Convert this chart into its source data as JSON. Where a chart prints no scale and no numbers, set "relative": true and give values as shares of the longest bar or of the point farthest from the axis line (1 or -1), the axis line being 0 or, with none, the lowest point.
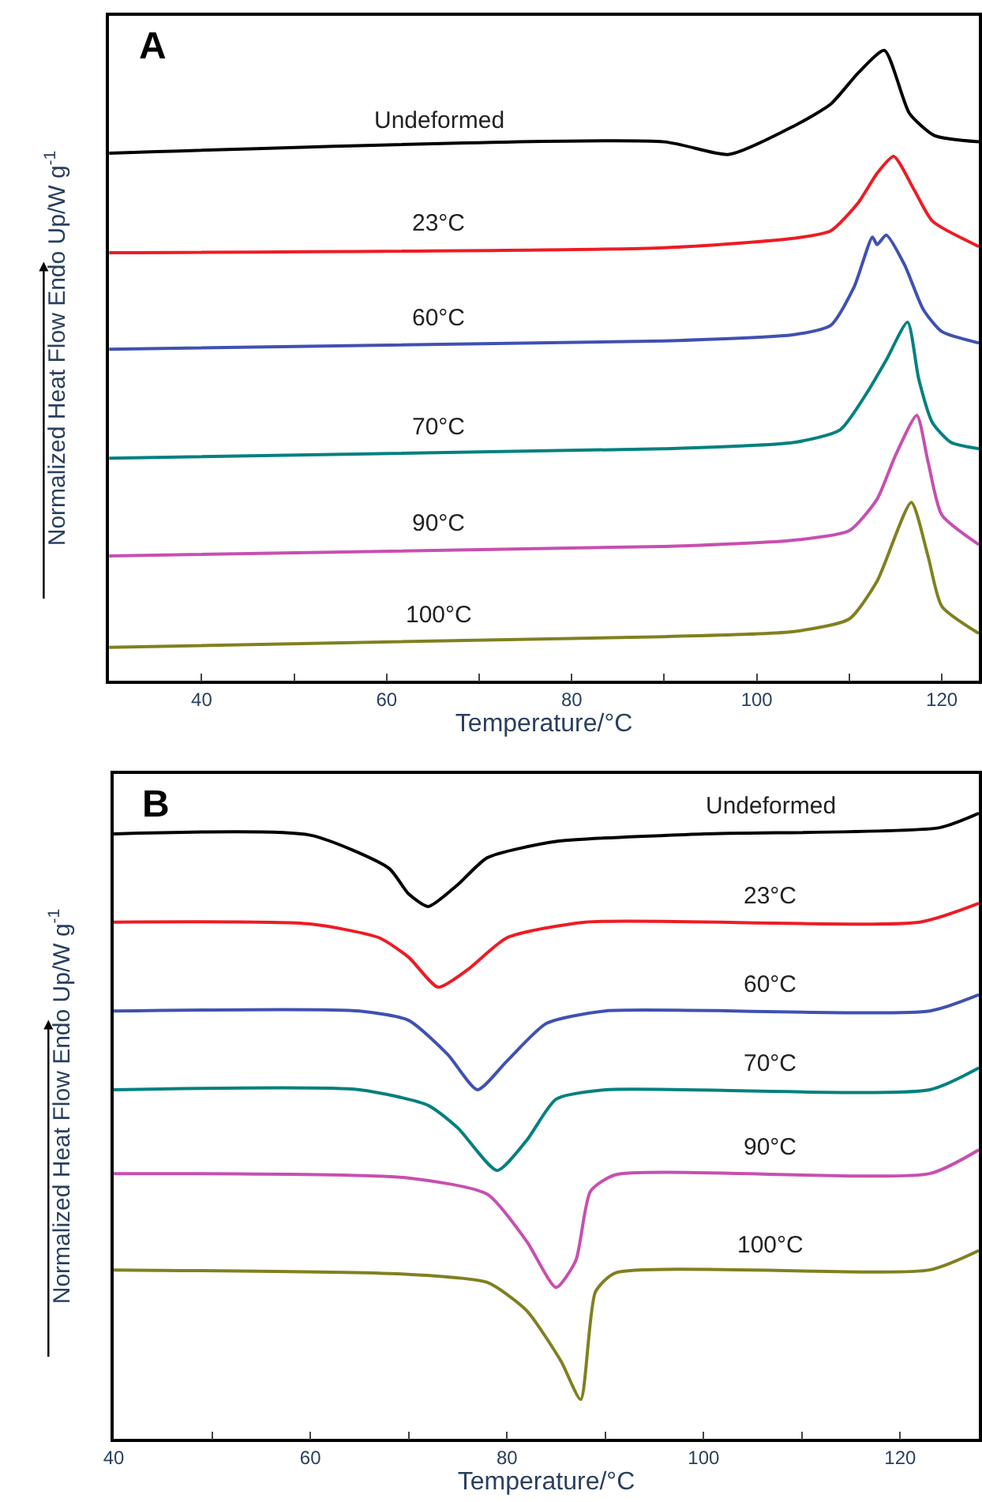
{
  "chart_data": [
    {
      "type": "line",
      "title": "A",
      "xlabel": "Temperature/°C",
      "ylabel": "Normalized Heat Flow Endo Up/W g$^{-1}$",
      "relative": true,
      "xlim": [
        30,
        124
      ],
      "xticks": [
        40,
        {
          "value": 50,
          "label": null
        },
        60,
        {
          "value": 70,
          "label": null
        },
        80,
        {
          "value": 90,
          "label": null
        },
        100,
        {
          "value": 110,
          "label": null
        },
        120
      ],
      "series": [
        {
          "name": "Undeformed",
          "color": "#000000",
          "x": [
            30,
            90,
            97,
            104,
            108,
            111,
            113.8,
            116.5,
            119.2,
            124
          ],
          "values": [
            0.837,
            0.855,
            0.835,
            0.88,
            0.915,
            0.965,
            1,
            0.9,
            0.865,
            0.855
          ]
        },
        {
          "name": "23°C",
          "color": "#ed1c24",
          "x": [
            30,
            90,
            104,
            108,
            111,
            113,
            114.8,
            117,
            119,
            124
          ],
          "values": [
            0.679,
            0.687,
            0.702,
            0.714,
            0.759,
            0.805,
            0.832,
            0.779,
            0.729,
            0.689
          ]
        },
        {
          "name": "60°C",
          "color": "#3f51b1",
          "x": [
            30,
            90,
            104,
            108,
            110.5,
            112.5,
            113,
            114,
            116,
            118,
            120,
            124
          ],
          "values": [
            0.526,
            0.539,
            0.549,
            0.564,
            0.624,
            0.704,
            0.692,
            0.707,
            0.659,
            0.589,
            0.554,
            0.536
          ]
        },
        {
          "name": "70°C",
          "color": "#00807f",
          "x": [
            30,
            90,
            104,
            109,
            112,
            114,
            116.3,
            117.5,
            119,
            121,
            124
          ],
          "values": [
            0.353,
            0.368,
            0.378,
            0.398,
            0.459,
            0.509,
            0.569,
            0.479,
            0.409,
            0.378,
            0.368
          ]
        },
        {
          "name": "90°C",
          "color": "#c74fb0",
          "x": [
            30,
            90,
            104,
            110,
            113,
            115,
            117.3,
            118.5,
            120,
            124
          ],
          "values": [
            0.198,
            0.213,
            0.223,
            0.238,
            0.288,
            0.358,
            0.421,
            0.348,
            0.263,
            0.216
          ]
        },
        {
          "name": "100°C",
          "color": "#808020",
          "x": [
            30,
            90,
            104,
            110,
            113,
            116.7,
            118.5,
            120,
            124
          ],
          "values": [
            0.053,
            0.07,
            0.078,
            0.098,
            0.158,
            0.283,
            0.198,
            0.118,
            0.075
          ]
        }
      ]
    },
    {
      "type": "line",
      "title": "B",
      "xlabel": "Temperature/°C",
      "ylabel": "Normalized Heat Flow Endo Up/W g$^{-1}$",
      "relative": true,
      "xlim": [
        40,
        128
      ],
      "xticks": [
        40,
        {
          "value": 50,
          "label": null
        },
        60,
        {
          "value": 70,
          "label": null
        },
        80,
        {
          "value": 90,
          "label": null
        },
        100,
        {
          "value": 110,
          "label": null
        },
        120
      ],
      "series": [
        {
          "name": "Undeformed",
          "color": "#000000",
          "x": [
            40,
            60,
            68,
            70,
            72,
            75,
            78,
            85,
            100,
            124,
            128
          ],
          "values": [
            0.967,
            0.965,
            0.912,
            0.871,
            0.851,
            0.886,
            0.929,
            0.955,
            0.967,
            0.977,
            1
          ]
        },
        {
          "name": "23°C",
          "color": "#ed1c24",
          "x": [
            40,
            60,
            67,
            70,
            73,
            76,
            80,
            88,
            122,
            128
          ],
          "values": [
            0.826,
            0.823,
            0.801,
            0.77,
            0.722,
            0.75,
            0.801,
            0.826,
            0.826,
            0.856
          ]
        },
        {
          "name": "60°C",
          "color": "#3f51b1",
          "x": [
            40,
            65,
            70,
            74,
            77,
            80,
            84,
            90,
            123,
            128
          ],
          "values": [
            0.684,
            0.684,
            0.669,
            0.614,
            0.558,
            0.604,
            0.664,
            0.684,
            0.684,
            0.71
          ]
        },
        {
          "name": "70°C",
          "color": "#00807f",
          "x": [
            40,
            65,
            72,
            75,
            79,
            82,
            85,
            90,
            123,
            128
          ],
          "values": [
            0.558,
            0.558,
            0.533,
            0.497,
            0.429,
            0.477,
            0.543,
            0.558,
            0.558,
            0.593
          ]
        },
        {
          "name": "90°C",
          "color": "#c74fb0",
          "x": [
            40,
            70,
            78,
            82,
            85,
            87,
            88.5,
            91,
            123,
            128
          ],
          "values": [
            0.424,
            0.417,
            0.391,
            0.316,
            0.242,
            0.285,
            0.396,
            0.422,
            0.424,
            0.462
          ]
        },
        {
          "name": "100°C",
          "color": "#808020",
          "x": [
            40,
            70,
            78,
            82,
            85.5,
            87.5,
            89,
            91,
            123,
            128
          ],
          "values": [
            0.27,
            0.263,
            0.25,
            0.205,
            0.124,
            0.063,
            0.235,
            0.265,
            0.27,
            0.301
          ]
        }
      ]
    }
  ]
}
